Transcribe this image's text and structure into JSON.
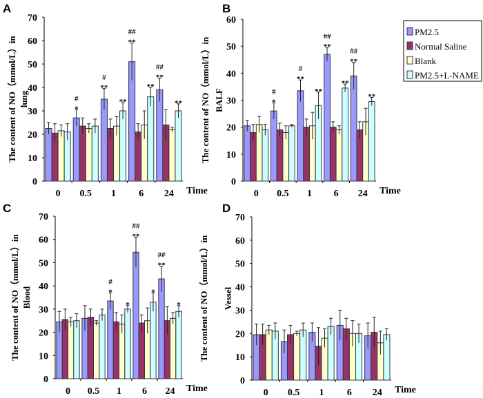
{
  "chart_data": [
    {
      "type": "bar",
      "panel": "A",
      "ylabel_lines": [
        "The content of NO（mmol/L）in",
        "lung"
      ],
      "xlabel": "Time",
      "categories": [
        "0",
        "0.5",
        "1",
        "6",
        "24"
      ],
      "ylim": [
        0,
        70
      ],
      "yticks": [
        0,
        10,
        20,
        30,
        40,
        50,
        60,
        70
      ],
      "series": [
        {
          "name": "PM2.5",
          "values": [
            22.5,
            27,
            35,
            51,
            39
          ],
          "errors": [
            2.5,
            3.5,
            4.5,
            8,
            5
          ]
        },
        {
          "name": "Normal Saline",
          "values": [
            20.5,
            23.5,
            22.5,
            21,
            24
          ],
          "errors": [
            4,
            3.5,
            4,
            3.5,
            6.5
          ]
        },
        {
          "name": "Blank",
          "values": [
            21.5,
            22.5,
            23.5,
            24,
            22
          ],
          "errors": [
            2.5,
            2,
            4,
            6,
            1
          ]
        },
        {
          "name": "PM2.5+L-NAME",
          "values": [
            21,
            23.5,
            30,
            36,
            30
          ],
          "errors": [
            3.5,
            3,
            3.5,
            4,
            3
          ]
        }
      ],
      "annotations": [
        {
          "series": 0,
          "category": 1,
          "lines": [
            "#",
            "*"
          ]
        },
        {
          "series": 0,
          "category": 2,
          "lines": [
            "#",
            "**"
          ]
        },
        {
          "series": 0,
          "category": 3,
          "lines": [
            "##",
            "**"
          ]
        },
        {
          "series": 0,
          "category": 4,
          "lines": [
            "##",
            "**"
          ]
        },
        {
          "series": 3,
          "category": 2,
          "lines": [
            "**"
          ]
        },
        {
          "series": 3,
          "category": 3,
          "lines": [
            "**"
          ]
        },
        {
          "series": 3,
          "category": 4,
          "lines": [
            "**"
          ]
        }
      ]
    },
    {
      "type": "bar",
      "panel": "B",
      "ylabel_lines": [
        "The content of NO（mmol/L）in",
        "BALF"
      ],
      "xlabel": "Time",
      "categories": [
        "0",
        "0.5",
        "1",
        "6",
        "24"
      ],
      "ylim": [
        0,
        60
      ],
      "yticks": [
        0,
        10,
        20,
        30,
        40,
        50,
        60
      ],
      "series": [
        {
          "name": "PM2.5",
          "values": [
            20.5,
            26,
            33.5,
            47,
            39
          ],
          "errors": [
            2,
            3,
            4,
            2.5,
            5
          ]
        },
        {
          "name": "Normal Saline",
          "values": [
            18,
            19,
            20,
            20,
            19
          ],
          "errors": [
            3,
            2.5,
            3,
            2,
            3
          ]
        },
        {
          "name": "Blank",
          "values": [
            21,
            18,
            20.5,
            19,
            22
          ],
          "errors": [
            3,
            2.5,
            5,
            1.5,
            5
          ]
        },
        {
          "name": "PM2.5+L-NAME",
          "values": [
            19,
            20.5,
            28,
            34.5,
            29.5
          ],
          "errors": [
            2,
            0.5,
            5,
            1.5,
            1.5
          ]
        }
      ],
      "annotations": [
        {
          "series": 0,
          "category": 1,
          "lines": [
            "#",
            "*"
          ]
        },
        {
          "series": 0,
          "category": 2,
          "lines": [
            "#",
            "**"
          ]
        },
        {
          "series": 0,
          "category": 3,
          "lines": [
            "##",
            "**"
          ]
        },
        {
          "series": 0,
          "category": 4,
          "lines": [
            "##",
            "**"
          ]
        },
        {
          "series": 3,
          "category": 2,
          "lines": [
            "**"
          ]
        },
        {
          "series": 3,
          "category": 3,
          "lines": [
            "**"
          ]
        },
        {
          "series": 3,
          "category": 4,
          "lines": [
            "**"
          ]
        }
      ]
    },
    {
      "type": "bar",
      "panel": "C",
      "ylabel_lines": [
        "The content of NO（mmol/L）in",
        "Blood"
      ],
      "xlabel": "Time",
      "categories": [
        "0",
        "0.5",
        "1",
        "6",
        "24"
      ],
      "ylim": [
        0,
        70
      ],
      "yticks": [
        0,
        10,
        20,
        30,
        40,
        50,
        60,
        70
      ],
      "series": [
        {
          "name": "PM2.5",
          "values": [
            24.5,
            26,
            33.5,
            54.5,
            43
          ],
          "errors": [
            4.5,
            5.5,
            3.5,
            6.5,
            5.5
          ]
        },
        {
          "name": "Normal Saline",
          "values": [
            25.5,
            26.5,
            24.5,
            24,
            25
          ],
          "errors": [
            4.5,
            3.5,
            4,
            3.5,
            6
          ]
        },
        {
          "name": "Blank",
          "values": [
            24.5,
            24,
            23.5,
            25,
            26
          ],
          "errors": [
            2,
            1,
            4,
            5.5,
            2.5
          ]
        },
        {
          "name": "PM2.5+L-NAME",
          "values": [
            25,
            27.5,
            30,
            33,
            29
          ],
          "errors": [
            3,
            2.5,
            1.5,
            4,
            2.5
          ]
        }
      ],
      "annotations": [
        {
          "series": 0,
          "category": 2,
          "lines": [
            "#",
            "*"
          ]
        },
        {
          "series": 0,
          "category": 3,
          "lines": [
            "##",
            "**"
          ]
        },
        {
          "series": 0,
          "category": 4,
          "lines": [
            "##",
            "**"
          ]
        },
        {
          "series": 3,
          "category": 2,
          "lines": [
            "*"
          ]
        },
        {
          "series": 3,
          "category": 3,
          "lines": [
            "*"
          ]
        },
        {
          "series": 3,
          "category": 4,
          "lines": [
            "*"
          ]
        }
      ]
    },
    {
      "type": "bar",
      "panel": "D",
      "ylabel_lines": [
        "The content of NO（mmol/L）in",
        "Vessel"
      ],
      "xlabel": "Time",
      "categories": [
        "0",
        "0.5",
        "1",
        "6",
        "24"
      ],
      "ylim": [
        0,
        70
      ],
      "yticks": [
        0,
        10,
        20,
        30,
        40,
        50,
        60,
        70
      ],
      "series": [
        {
          "name": "PM2.5",
          "values": [
            19.5,
            16.5,
            20.5,
            23.5,
            19
          ],
          "errors": [
            4.5,
            5,
            4,
            6.5,
            5.5
          ]
        },
        {
          "name": "Normal Saline",
          "values": [
            19.5,
            19.5,
            14.5,
            22,
            20.5
          ],
          "errors": [
            4.5,
            4,
            8,
            4.5,
            6.5
          ]
        },
        {
          "name": "Blank",
          "values": [
            21.5,
            20,
            18,
            20,
            16
          ],
          "errors": [
            2,
            1,
            4,
            5.5,
            5
          ]
        },
        {
          "name": "PM2.5+L-NAME",
          "values": [
            21,
            21.5,
            23,
            20,
            19.5
          ],
          "errors": [
            3.5,
            3,
            3.5,
            4,
            2.5
          ]
        }
      ],
      "annotations": []
    }
  ],
  "legend": {
    "placement": "right of panel B",
    "items": [
      {
        "label": "PM2.5",
        "color": "#9999ff"
      },
      {
        "label": "Normal Saline",
        "color": "#993366"
      },
      {
        "label": "Blank",
        "color": "#ffffcc"
      },
      {
        "label": "PM2.5+L-NAME",
        "color": "#ccffff"
      }
    ]
  }
}
